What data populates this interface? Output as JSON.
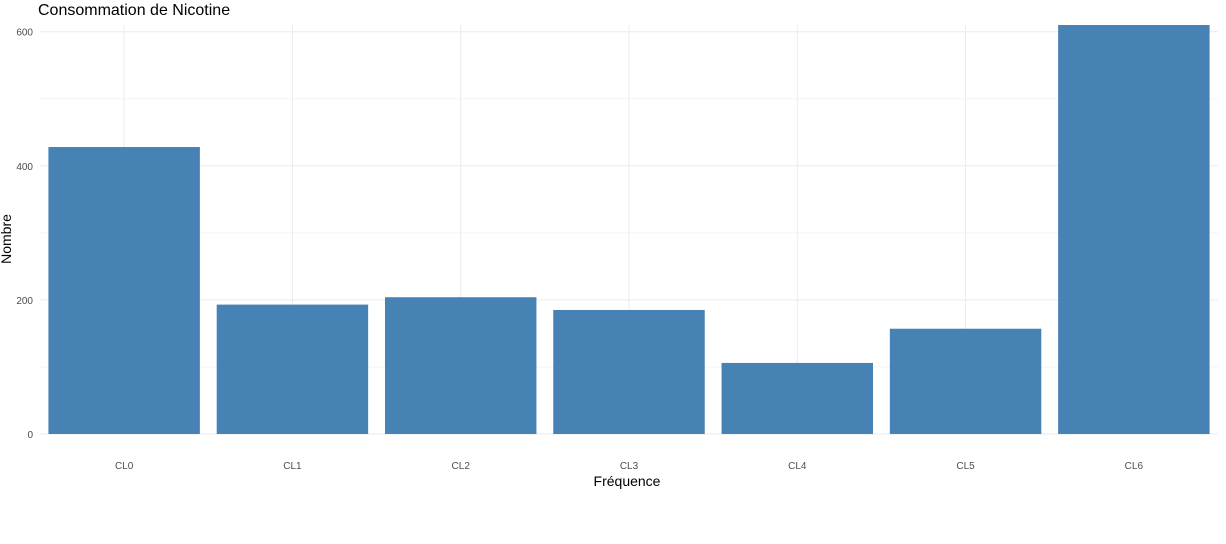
{
  "chart_data": {
    "type": "bar",
    "title": "Consommation de Nicotine",
    "xlabel": "Fréquence",
    "ylabel": "Nombre",
    "categories": [
      "CL0",
      "CL1",
      "CL2",
      "CL3",
      "CL4",
      "CL5",
      "CL6"
    ],
    "values": [
      428,
      193,
      204,
      185,
      106,
      157,
      610
    ],
    "yticks": [
      0,
      200,
      400,
      600
    ],
    "ylim": [
      0,
      610
    ],
    "grid": true,
    "bar_color": "#4682B4"
  }
}
